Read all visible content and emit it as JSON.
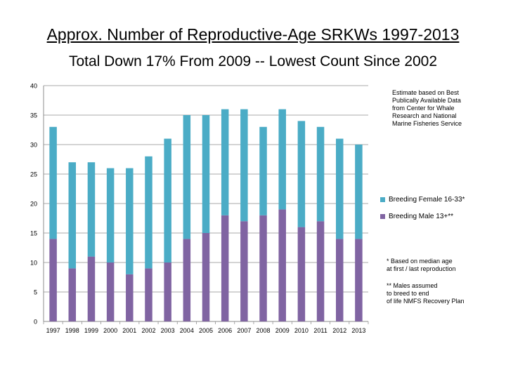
{
  "title": "Approx. Number of Reproductive-Age SRKWs 1997-2013",
  "subtitle": "Total Down 17% From 2009 -- Lowest Count Since 2002",
  "notes": {
    "source": "Estimate based on Best\nPublically Available Data\nfrom Center for Whale\nResearch and National\nMarine Fisheries Service",
    "footnote1": "* Based on median age\nat first / last reproduction",
    "footnote2": "** Males assumed\nto breed to end\nof life NMFS Recovery Plan"
  },
  "colors": {
    "female": "#4bacc6",
    "male": "#8064a2",
    "grid": "#8c8c8c"
  },
  "chart_data": {
    "type": "bar",
    "stacked": true,
    "title": "Approx. Number of Reproductive-Age SRKWs 1997-2013",
    "subtitle": "Total Down 17% From 2009 -- Lowest Count Since 2002",
    "categories": [
      "1997",
      "1998",
      "1999",
      "2000",
      "2001",
      "2002",
      "2003",
      "2004",
      "2005",
      "2006",
      "2007",
      "2008",
      "2009",
      "2010",
      "2011",
      "2012",
      "2013"
    ],
    "series": [
      {
        "name": "Breeding Male 13+**",
        "values": [
          14,
          9,
          11,
          10,
          8,
          9,
          10,
          14,
          15,
          18,
          17,
          18,
          19,
          16,
          17,
          14,
          14
        ]
      },
      {
        "name": "Breeding Female 16-33*",
        "values": [
          19,
          18,
          16,
          16,
          18,
          19,
          21,
          21,
          20,
          18,
          19,
          15,
          17,
          18,
          16,
          17,
          16
        ]
      }
    ],
    "ylim": [
      0,
      40
    ],
    "yticks": [
      0,
      5,
      10,
      15,
      20,
      25,
      30,
      35,
      40
    ],
    "grid": true,
    "legend": "right"
  }
}
